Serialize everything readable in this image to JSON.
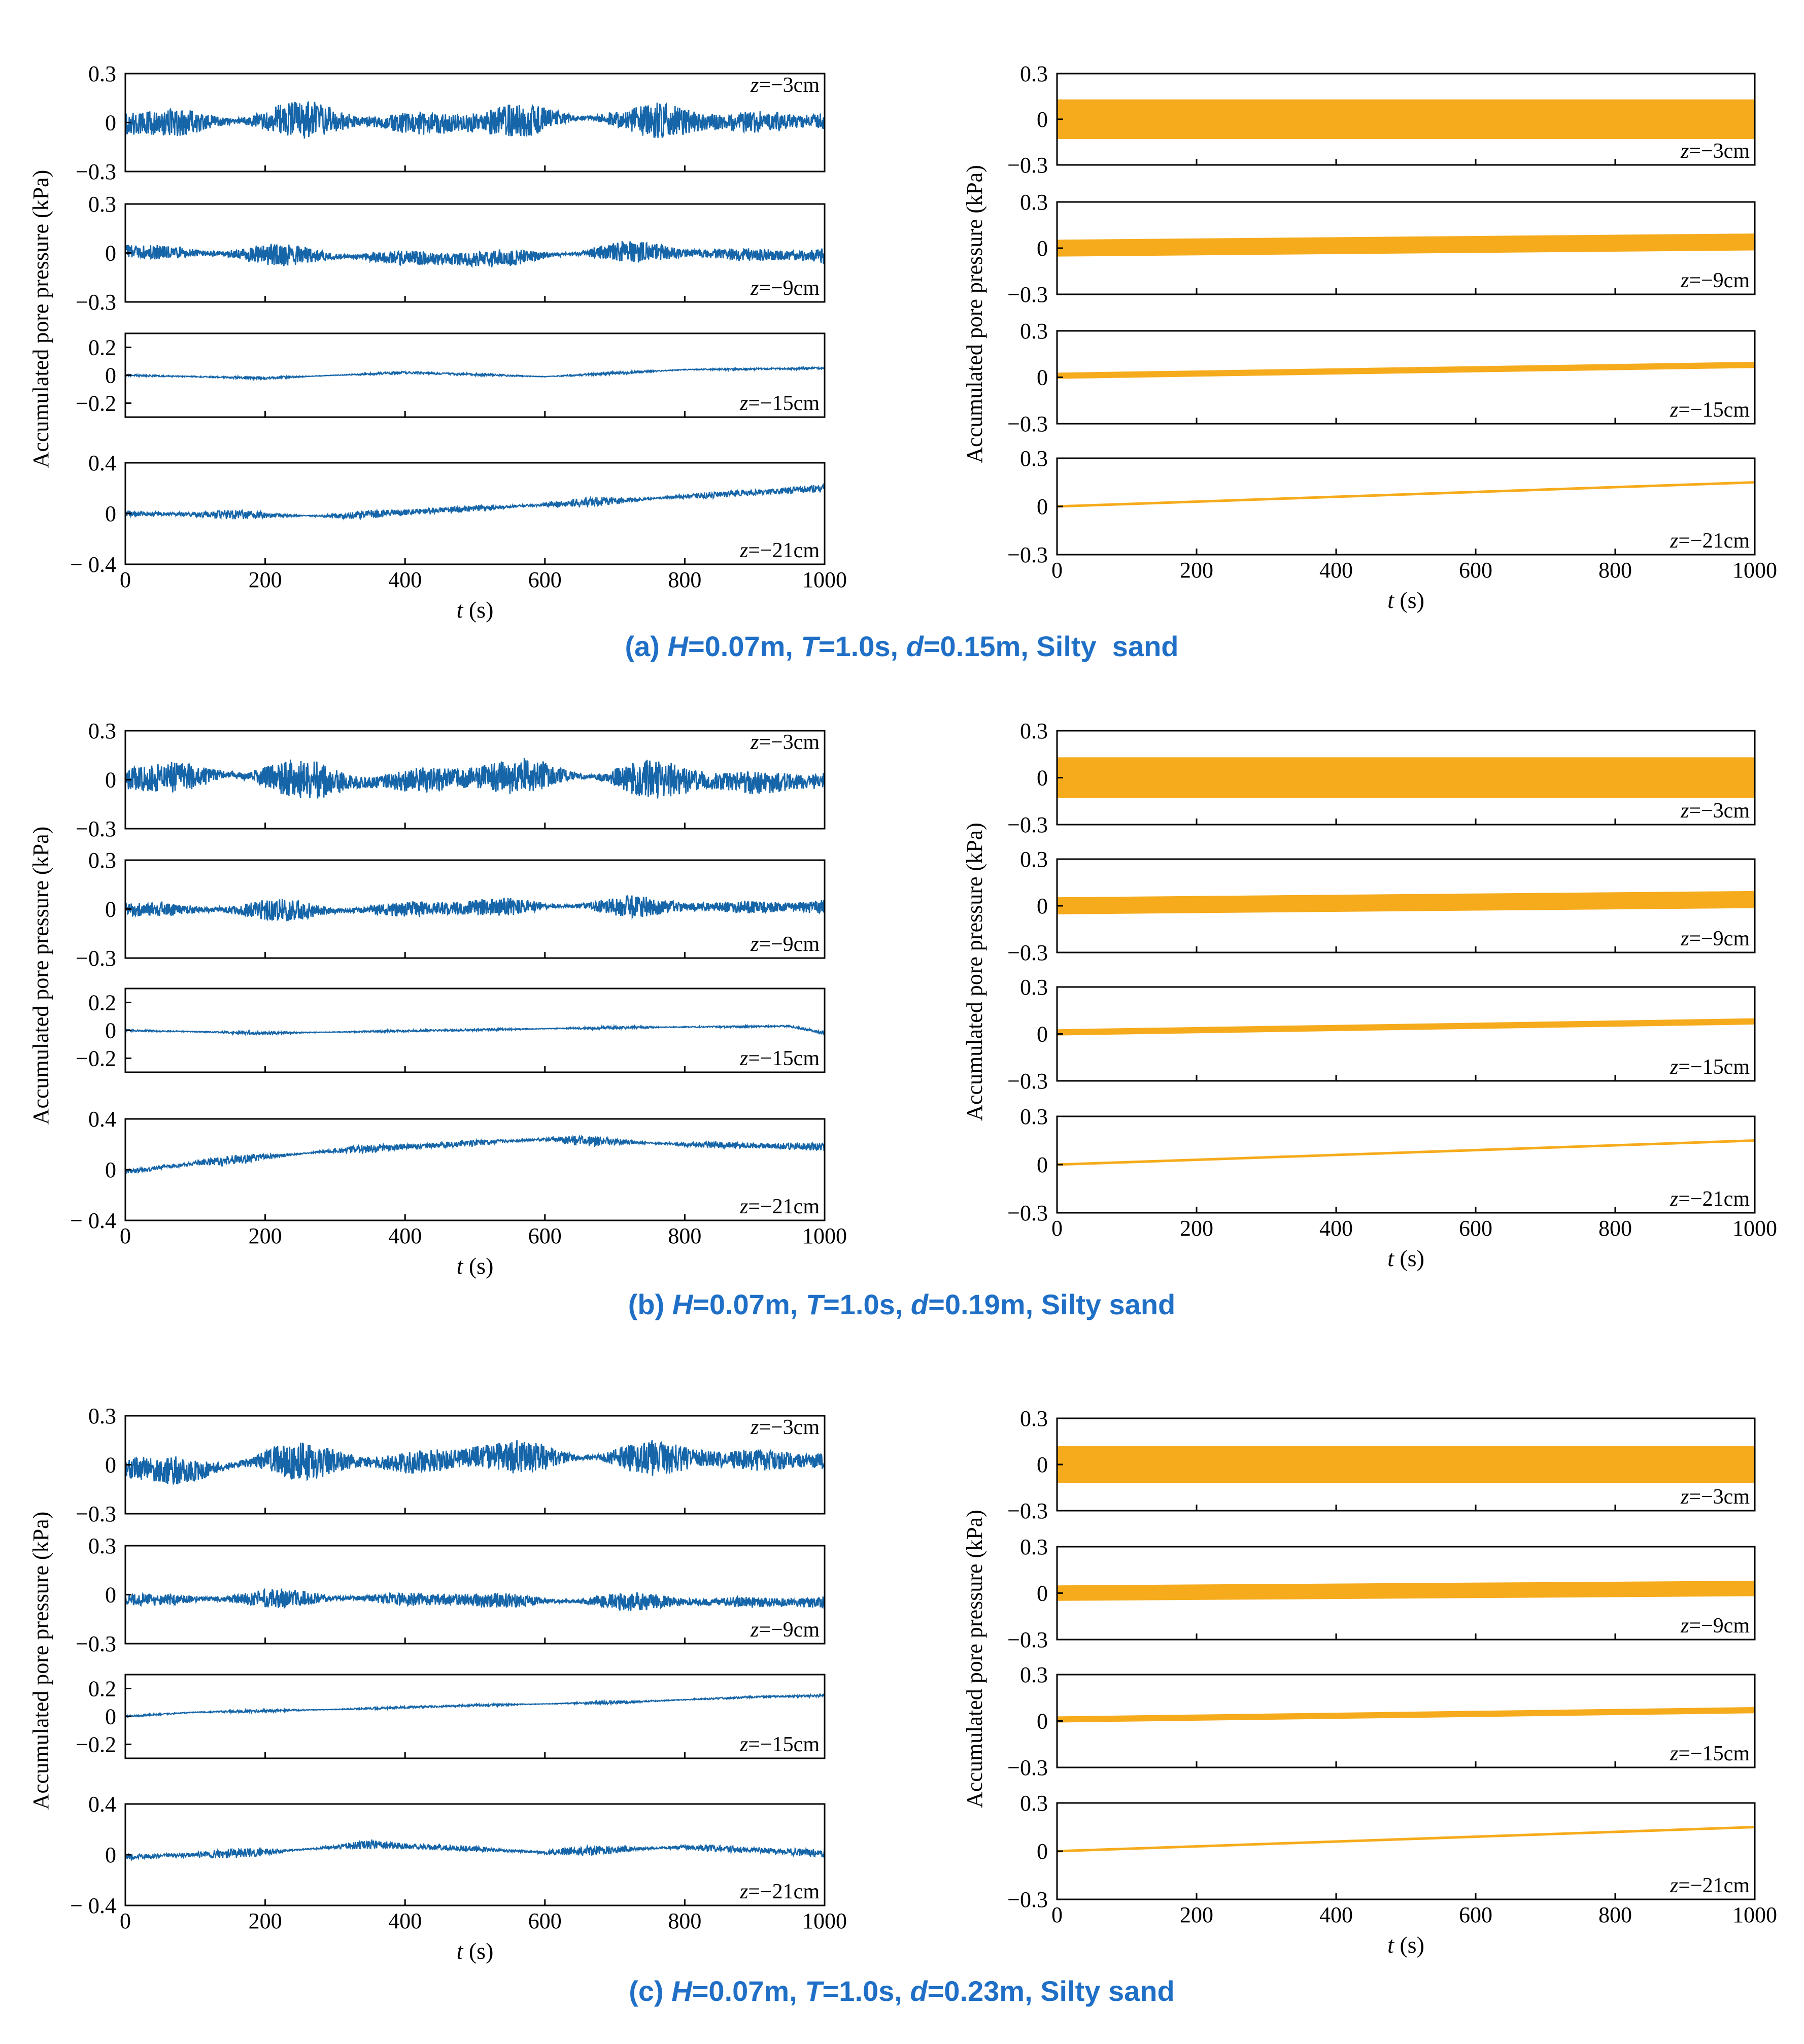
{
  "colors": {
    "measured": "#1565a8",
    "predicted": "#f5ab1b",
    "caption": "#1f6fc6",
    "axis": "#000000"
  },
  "chart_data": [
    {
      "type": "line",
      "caption": {
        "prefix": "(a) ",
        "H": "0.07m",
        "T": "1.0s",
        "d": "0.15m",
        "soil": "Silty  sand"
      },
      "xlabel": {
        "var": "t",
        "unit": " (s)"
      },
      "ylabel": "Accumulated pore pressure (kPa)",
      "xlim": [
        0,
        1000
      ],
      "xticks": [
        "0",
        "200",
        "400",
        "600",
        "800",
        "1000"
      ],
      "panels": {
        "measured": [
          {
            "z": "=−3cm",
            "ylim": [
              -0.3,
              0.3
            ],
            "yticks": [
              {
                "v": 0.3,
                "t": "0.3"
              },
              {
                "v": 0,
                "t": "0"
              },
              {
                "v": -0.3,
                "t": "−0.3"
              }
            ],
            "amplitude": 0.12,
            "drift": [
              [
                0,
                -0.01
              ],
              [
                250,
                0.02
              ],
              [
                450,
                -0.01
              ],
              [
                650,
                0.03
              ],
              [
                850,
                0.0
              ],
              [
                1000,
                0.01
              ]
            ]
          },
          {
            "z": "=−9cm",
            "ylim": [
              -0.3,
              0.3
            ],
            "yticks": [
              {
                "v": 0.3,
                "t": "0.3"
              },
              {
                "v": 0,
                "t": "0"
              },
              {
                "v": -0.3,
                "t": "−0.3"
              }
            ],
            "amplitude": 0.07,
            "drift": [
              [
                0,
                0.01
              ],
              [
                300,
                -0.02
              ],
              [
                500,
                -0.04
              ],
              [
                700,
                0.01
              ],
              [
                1000,
                -0.02
              ]
            ]
          },
          {
            "z": "=−15cm",
            "ylim": [
              -0.3,
              0.3
            ],
            "yticks": [
              {
                "v": 0.2,
                "t": "0.2"
              },
              {
                "v": 0,
                "t": "0"
              },
              {
                "v": -0.2,
                "t": "−0.2"
              }
            ],
            "amplitude": 0.012,
            "drift": [
              [
                0,
                0.0
              ],
              [
                200,
                -0.02
              ],
              [
                400,
                0.02
              ],
              [
                600,
                -0.01
              ],
              [
                800,
                0.04
              ],
              [
                1000,
                0.05
              ]
            ]
          },
          {
            "z": "=−21cm",
            "ylim": [
              -0.4,
              0.4
            ],
            "yticks": [
              {
                "v": 0.4,
                "t": "0.4"
              },
              {
                "v": 0,
                "t": "0"
              },
              {
                "v": -0.4,
                "t": "− 0.4"
              }
            ],
            "amplitude": 0.04,
            "drift": [
              [
                0,
                0.0
              ],
              [
                300,
                -0.02
              ],
              [
                500,
                0.04
              ],
              [
                700,
                0.1
              ],
              [
                850,
                0.15
              ],
              [
                1000,
                0.2
              ]
            ]
          }
        ],
        "predicted": [
          {
            "z": "=−3cm",
            "ylim": [
              -0.3,
              0.3
            ],
            "yticks": [
              {
                "v": 0.3,
                "t": "0.3"
              },
              {
                "v": 0,
                "t": "0"
              },
              {
                "v": -0.3,
                "t": "−0.3"
              }
            ],
            "start": 0.0,
            "end": 0.0,
            "band": 0.13
          },
          {
            "z": "=−9cm",
            "ylim": [
              -0.3,
              0.3
            ],
            "yticks": [
              {
                "v": 0.3,
                "t": "0.3"
              },
              {
                "v": 0,
                "t": "0"
              },
              {
                "v": -0.3,
                "t": "−0.3"
              }
            ],
            "start": 0.0,
            "end": 0.04,
            "band": 0.055
          },
          {
            "z": "=−15cm",
            "ylim": [
              -0.3,
              0.3
            ],
            "yticks": [
              {
                "v": 0.3,
                "t": "0.3"
              },
              {
                "v": 0,
                "t": "0"
              },
              {
                "v": -0.3,
                "t": "−0.3"
              }
            ],
            "start": 0.01,
            "end": 0.08,
            "band": 0.02
          },
          {
            "z": "=−21cm",
            "ylim": [
              -0.3,
              0.3
            ],
            "yticks": [
              {
                "v": 0.3,
                "t": "0.3"
              },
              {
                "v": 0,
                "t": "0"
              },
              {
                "v": -0.3,
                "t": "−0.3"
              }
            ],
            "start": 0.0,
            "end": 0.15,
            "band": 0.004
          }
        ]
      }
    },
    {
      "type": "line",
      "caption": {
        "prefix": "(b) ",
        "H": "0.07m",
        "T": "1.0s",
        "d": "0.19m",
        "soil": "Silty sand"
      },
      "xlabel": {
        "var": "t",
        "unit": " (s)"
      },
      "ylabel": "Accumulated pore pressure (kPa)",
      "xlim": [
        0,
        1000
      ],
      "xticks": [
        "0",
        "200",
        "400",
        "600",
        "800",
        "1000"
      ],
      "panels": {
        "measured": [
          {
            "z": "=−3cm",
            "ylim": [
              -0.3,
              0.3
            ],
            "yticks": [
              {
                "v": 0.3,
                "t": "0.3"
              },
              {
                "v": 0,
                "t": "0"
              },
              {
                "v": -0.3,
                "t": "−0.3"
              }
            ],
            "amplitude": 0.13,
            "drift": [
              [
                0,
                0.0
              ],
              [
                150,
                0.03
              ],
              [
                330,
                -0.02
              ],
              [
                600,
                0.03
              ],
              [
                900,
                -0.02
              ],
              [
                1000,
                -0.01
              ]
            ]
          },
          {
            "z": "=−9cm",
            "ylim": [
              -0.3,
              0.3
            ],
            "yticks": [
              {
                "v": 0.3,
                "t": "0.3"
              },
              {
                "v": 0,
                "t": "0"
              },
              {
                "v": -0.3,
                "t": "−0.3"
              }
            ],
            "amplitude": 0.07,
            "drift": [
              [
                0,
                0.0
              ],
              [
                300,
                -0.01
              ],
              [
                600,
                0.02
              ],
              [
                1000,
                0.01
              ]
            ]
          },
          {
            "z": "=−15cm",
            "ylim": [
              -0.3,
              0.3
            ],
            "yticks": [
              {
                "v": 0.2,
                "t": "0.2"
              },
              {
                "v": 0,
                "t": "0"
              },
              {
                "v": -0.2,
                "t": "−0.2"
              }
            ],
            "amplitude": 0.012,
            "drift": [
              [
                0,
                0.0
              ],
              [
                200,
                -0.02
              ],
              [
                450,
                0.0
              ],
              [
                700,
                0.02
              ],
              [
                950,
                0.03
              ],
              [
                1000,
                -0.02
              ]
            ]
          },
          {
            "z": "=−21cm",
            "ylim": [
              -0.4,
              0.4
            ],
            "yticks": [
              {
                "v": 0.4,
                "t": "0.4"
              },
              {
                "v": 0,
                "t": "0"
              },
              {
                "v": -0.4,
                "t": "− 0.4"
              }
            ],
            "amplitude": 0.04,
            "drift": [
              [
                0,
                -0.02
              ],
              [
                100,
                0.05
              ],
              [
                300,
                0.15
              ],
              [
                600,
                0.24
              ],
              [
                800,
                0.2
              ],
              [
                1000,
                0.18
              ]
            ]
          }
        ],
        "predicted": [
          {
            "z": "=−3cm",
            "ylim": [
              -0.3,
              0.3
            ],
            "yticks": [
              {
                "v": 0.3,
                "t": "0.3"
              },
              {
                "v": 0,
                "t": "0"
              },
              {
                "v": -0.3,
                "t": "−0.3"
              }
            ],
            "start": 0.0,
            "end": 0.0,
            "band": 0.13
          },
          {
            "z": "=−9cm",
            "ylim": [
              -0.3,
              0.3
            ],
            "yticks": [
              {
                "v": 0.3,
                "t": "0.3"
              },
              {
                "v": 0,
                "t": "0"
              },
              {
                "v": -0.3,
                "t": "−0.3"
              }
            ],
            "start": 0.0,
            "end": 0.04,
            "band": 0.055
          },
          {
            "z": "=−15cm",
            "ylim": [
              -0.3,
              0.3
            ],
            "yticks": [
              {
                "v": 0.3,
                "t": "0.3"
              },
              {
                "v": 0,
                "t": "0"
              },
              {
                "v": -0.3,
                "t": "−0.3"
              }
            ],
            "start": 0.01,
            "end": 0.08,
            "band": 0.02
          },
          {
            "z": "=−21cm",
            "ylim": [
              -0.3,
              0.3
            ],
            "yticks": [
              {
                "v": 0.3,
                "t": "0.3"
              },
              {
                "v": 0,
                "t": "0"
              },
              {
                "v": -0.3,
                "t": "−0.3"
              }
            ],
            "start": 0.0,
            "end": 0.15,
            "band": 0.004
          }
        ]
      }
    },
    {
      "type": "line",
      "caption": {
        "prefix": "(c) ",
        "H": "0.07m",
        "T": "1.0s",
        "d": "0.23m",
        "soil": "Silty sand"
      },
      "xlabel": {
        "var": "t",
        "unit": " (s)"
      },
      "ylabel": "Accumulated pore pressure (kPa)",
      "xlim": [
        0,
        1000
      ],
      "xticks": [
        "0",
        "200",
        "400",
        "600",
        "800",
        "1000"
      ],
      "panels": {
        "measured": [
          {
            "z": "=−3cm",
            "ylim": [
              -0.3,
              0.3
            ],
            "yticks": [
              {
                "v": 0.3,
                "t": "0.3"
              },
              {
                "v": 0,
                "t": "0"
              },
              {
                "v": -0.3,
                "t": "−0.3"
              }
            ],
            "amplitude": 0.12,
            "drift": [
              [
                0,
                -0.02
              ],
              [
                100,
                -0.04
              ],
              [
                200,
                0.03
              ],
              [
                400,
                0.01
              ],
              [
                500,
                0.05
              ],
              [
                800,
                0.04
              ],
              [
                1000,
                0.02
              ]
            ]
          },
          {
            "z": "=−9cm",
            "ylim": [
              -0.3,
              0.3
            ],
            "yticks": [
              {
                "v": 0.3,
                "t": "0.3"
              },
              {
                "v": 0,
                "t": "0"
              },
              {
                "v": -0.3,
                "t": "−0.3"
              }
            ],
            "amplitude": 0.06,
            "drift": [
              [
                0,
                -0.03
              ],
              [
                300,
                -0.02
              ],
              [
                600,
                -0.04
              ],
              [
                1000,
                -0.05
              ]
            ]
          },
          {
            "z": "=−15cm",
            "ylim": [
              -0.3,
              0.3
            ],
            "yticks": [
              {
                "v": 0.2,
                "t": "0.2"
              },
              {
                "v": 0,
                "t": "0"
              },
              {
                "v": -0.2,
                "t": "−0.2"
              }
            ],
            "amplitude": 0.012,
            "drift": [
              [
                0,
                0.0
              ],
              [
                100,
                0.03
              ],
              [
                300,
                0.05
              ],
              [
                500,
                0.08
              ],
              [
                700,
                0.1
              ],
              [
                900,
                0.14
              ],
              [
                1000,
                0.15
              ]
            ]
          },
          {
            "z": "=−21cm",
            "ylim": [
              -0.4,
              0.4
            ],
            "yticks": [
              {
                "v": 0.4,
                "t": "0.4"
              },
              {
                "v": 0,
                "t": "0"
              },
              {
                "v": -0.4,
                "t": "− 0.4"
              }
            ],
            "amplitude": 0.04,
            "drift": [
              [
                0,
                -0.02
              ],
              [
                200,
                0.02
              ],
              [
                350,
                0.08
              ],
              [
                600,
                0.02
              ],
              [
                800,
                0.06
              ],
              [
                1000,
                0.01
              ]
            ]
          }
        ],
        "predicted": [
          {
            "z": "=−3cm",
            "ylim": [
              -0.3,
              0.3
            ],
            "yticks": [
              {
                "v": 0.3,
                "t": "0.3"
              },
              {
                "v": 0,
                "t": "0"
              },
              {
                "v": -0.3,
                "t": "−0.3"
              }
            ],
            "start": 0.0,
            "end": 0.0,
            "band": 0.12
          },
          {
            "z": "=−9cm",
            "ylim": [
              -0.3,
              0.3
            ],
            "yticks": [
              {
                "v": 0.3,
                "t": "0.3"
              },
              {
                "v": 0,
                "t": "0"
              },
              {
                "v": -0.3,
                "t": "−0.3"
              }
            ],
            "start": 0.0,
            "end": 0.03,
            "band": 0.05
          },
          {
            "z": "=−15cm",
            "ylim": [
              -0.3,
              0.3
            ],
            "yticks": [
              {
                "v": 0.3,
                "t": "0.3"
              },
              {
                "v": 0,
                "t": "0"
              },
              {
                "v": -0.3,
                "t": "−0.3"
              }
            ],
            "start": 0.01,
            "end": 0.07,
            "band": 0.02
          },
          {
            "z": "=−21cm",
            "ylim": [
              -0.3,
              0.3
            ],
            "yticks": [
              {
                "v": 0.3,
                "t": "0.3"
              },
              {
                "v": 0,
                "t": "0"
              },
              {
                "v": -0.3,
                "t": "−0.3"
              }
            ],
            "start": 0.0,
            "end": 0.15,
            "band": 0.004
          }
        ]
      }
    }
  ]
}
